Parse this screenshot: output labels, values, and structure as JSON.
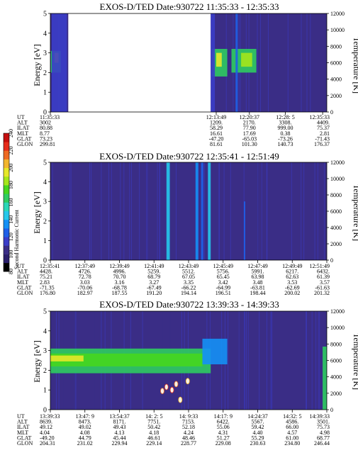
{
  "colors": {
    "background": "#3a2d86",
    "spectrum": [
      "#000000",
      "#2a1f6b",
      "#3a2d86",
      "#3b3dc8",
      "#1f5fe8",
      "#1590f5",
      "#26c8ea",
      "#2bd7b7",
      "#2fcc60",
      "#46d61e",
      "#a5e61b",
      "#e6e82a",
      "#f2b52d",
      "#ee6a24",
      "#e62d1c",
      "#c40f0f"
    ]
  },
  "colorbar": {
    "label": "Second Harmonic Current",
    "ticks": [
      "80",
      "100",
      "120",
      "140",
      "160",
      "180",
      "200",
      "220",
      "240"
    ]
  },
  "chart_data": [
    {
      "type": "heatmap",
      "title": "EXOS-D/TED   Date:930722   11:35:33 - 12:35:33",
      "ylabel": "Energy [eV]",
      "y2label": "Temperature [K]",
      "ylim": [
        0,
        5
      ],
      "yticks": [
        "0",
        "1",
        "2",
        "3",
        "4",
        "5"
      ],
      "y2lim": [
        0,
        12000
      ],
      "y2ticks": [
        "0",
        "2000",
        "4000",
        "6000",
        "8000",
        "10000",
        "12000"
      ],
      "data_gaps": [
        {
          "from": "11:39:00",
          "to": "12:13:00"
        }
      ],
      "features": [
        {
          "t0": 0.002,
          "t1": 0.038,
          "e0": 2.0,
          "e1": 3.1,
          "level": 0.55
        },
        {
          "t0": 0.015,
          "t1": 0.03,
          "e0": 2.5,
          "e1": 3.0,
          "level": 0.72
        },
        {
          "t0": 0.005,
          "t1": 0.06,
          "e0": 0.0,
          "e1": 5.0,
          "level": 0.2
        },
        {
          "t0": 0.585,
          "t1": 0.64,
          "e0": 1.8,
          "e1": 3.2,
          "level": 0.55
        },
        {
          "t0": 0.6,
          "t1": 0.62,
          "e0": 2.3,
          "e1": 3.0,
          "level": 0.72
        },
        {
          "t0": 0.58,
          "t1": 0.595,
          "e0": 0.0,
          "e1": 5.0,
          "level": 0.22
        },
        {
          "t0": 0.655,
          "t1": 0.745,
          "e0": 2.0,
          "e1": 3.2,
          "level": 0.5
        },
        {
          "t0": 0.69,
          "t1": 0.73,
          "e0": 2.3,
          "e1": 3.0,
          "level": 0.68
        },
        {
          "t0": 0.67,
          "t1": 0.678,
          "e0": 0.0,
          "e1": 5.0,
          "level": 0.25
        }
      ],
      "ephemeris": {
        "labels": [
          "UT",
          "ALT",
          "ILAT",
          "MLT",
          "GLAT",
          "GLON"
        ],
        "columns": [
          {
            "values": [
              "11:35:33",
              "3002",
              "80.88",
              "8.77",
              "73.23",
              "299.81"
            ]
          },
          {
            "values": [
              "12:13:49",
              "1209.",
              "58.29",
              "16.61",
              "-47.20",
              "81.61"
            ]
          },
          {
            "values": [
              "12:20:37",
              "2170.",
              "77.90",
              "17.69",
              "-65.03",
              "101.30"
            ]
          },
          {
            "values": [
              "12:28: 5",
              "3308.",
              "999.00",
              "0.38",
              "-73.26",
              "140.73"
            ]
          },
          {
            "values": [
              "12:35:33",
              "4409.",
              "75.37",
              "2.81",
              "-71.43",
              "176.37"
            ]
          }
        ]
      }
    },
    {
      "type": "heatmap",
      "title": "EXOS-D/TED   Date:930722   12:35:41 - 12:51:49",
      "ylabel": "Energy [eV]",
      "y2label": "Temperature [K]",
      "ylim": [
        0,
        5
      ],
      "yticks": [
        "0",
        "1",
        "2",
        "3",
        "4",
        "5"
      ],
      "y2lim": [
        0,
        12000
      ],
      "y2ticks": [
        "0",
        "2000",
        "4000",
        "6000",
        "8000",
        "10000",
        "12000"
      ],
      "features": [
        {
          "t0": 0.42,
          "t1": 0.432,
          "e0": 0.0,
          "e1": 5.0,
          "level": 0.4
        },
        {
          "t0": 0.525,
          "t1": 0.535,
          "e0": 0.0,
          "e1": 5.0,
          "level": 0.32
        },
        {
          "t0": 0.545,
          "t1": 0.553,
          "e0": 0.0,
          "e1": 5.0,
          "level": 0.28
        },
        {
          "t0": 0.57,
          "t1": 0.58,
          "e0": 0.0,
          "e1": 5.0,
          "level": 0.42
        },
        {
          "t0": 0.7,
          "t1": 0.705,
          "e0": 0.0,
          "e1": 3.0,
          "level": 0.25
        }
      ],
      "ephemeris": {
        "labels": [
          "UT",
          "ALT",
          "ILAT",
          "MLT",
          "GLAT",
          "GLON"
        ],
        "columns": [
          {
            "values": [
              "12:35:41",
              "4428.",
              "75.21",
              "2.83",
              "-71.35",
              "176.80"
            ]
          },
          {
            "values": [
              "12:37:49",
              "4726.",
              "72.78",
              "3.03",
              "-70.06",
              "182.97"
            ]
          },
          {
            "values": [
              "12:39:49",
              "4996.",
              "70.70",
              "3.16",
              "-68.78",
              "187.55"
            ]
          },
          {
            "values": [
              "12:41:49",
              "5259.",
              "68.79",
              "3.27",
              "-67.49",
              "191.20"
            ]
          },
          {
            "values": [
              "12:43:49",
              "5512.",
              "67.05",
              "3.35",
              "-66.22",
              "194.14"
            ]
          },
          {
            "values": [
              "12:45:49",
              "5756.",
              "65.45",
              "3.42",
              "-64.99",
              "196.51"
            ]
          },
          {
            "values": [
              "12:47:49",
              "5991.",
              "63.98",
              "3.48",
              "-63.81",
              "198.44"
            ]
          },
          {
            "values": [
              "12:49:49",
              "6217.",
              "62.63",
              "3.53",
              "-62.69",
              "200.02"
            ]
          },
          {
            "values": [
              "12:51:49",
              "6432.",
              "61.39",
              "3.57",
              "-61.63",
              "201.32"
            ]
          }
        ]
      }
    },
    {
      "type": "heatmap",
      "title": "EXOS-D/TED   Date:930722   13:39:33 - 14:39:33",
      "ylabel": "Energy [eV]",
      "y2label": "Temperature [K]",
      "ylim": [
        0,
        5
      ],
      "yticks": [
        "0",
        "1",
        "2",
        "3",
        "4",
        "5"
      ],
      "y2lim": [
        0,
        12000
      ],
      "y2ticks": [
        "0",
        "2000",
        "4000",
        "6000",
        "8000",
        "10000",
        "12000"
      ],
      "features": [
        {
          "t0": 0.0,
          "t1": 0.58,
          "e0": 1.85,
          "e1": 3.1,
          "level": 0.5
        },
        {
          "t0": 0.0,
          "t1": 0.55,
          "e0": 2.2,
          "e1": 2.85,
          "level": 0.62
        },
        {
          "t0": 0.0,
          "t1": 0.12,
          "e0": 2.45,
          "e1": 2.75,
          "level": 0.7
        },
        {
          "t0": 0.55,
          "t1": 0.64,
          "e0": 2.3,
          "e1": 3.6,
          "level": 0.35
        },
        {
          "t0": 0.985,
          "t1": 1.0,
          "e0": 0.0,
          "e1": 3.2,
          "level": 0.5
        }
      ],
      "hotspots": [
        {
          "t": 0.42,
          "e": 1.15,
          "level": 0.93
        },
        {
          "t": 0.44,
          "e": 1.0,
          "level": 0.9
        },
        {
          "t": 0.405,
          "e": 0.95,
          "level": 0.88
        },
        {
          "t": 0.455,
          "e": 1.3,
          "level": 0.85
        },
        {
          "t": 0.47,
          "e": 0.5,
          "level": 0.82
        },
        {
          "t": 0.497,
          "e": 1.45,
          "level": 0.8
        }
      ],
      "ephemeris": {
        "labels": [
          "UT",
          "ALT",
          "ILAT",
          "MLT",
          "GLAT",
          "GLON"
        ],
        "columns": [
          {
            "values": [
              "13:39:33",
              "8639.",
              "49.12",
              "4.04",
              "-49.20",
              "204.31"
            ]
          },
          {
            "values": [
              "13:47: 9",
              "8473.",
              "49.02",
              "4.08",
              "44.79",
              "231.02"
            ]
          },
          {
            "values": [
              "13:54:37",
              "8171.",
              "49.43",
              "4.13",
              "45.44",
              "229.94"
            ]
          },
          {
            "values": [
              "14: 2: 5",
              "7751.",
              "50.42",
              "4.18",
              "46.61",
              "229.14"
            ]
          },
          {
            "values": [
              "14: 9:33",
              "7153.",
              "52.18",
              "4.24",
              "48.46",
              "228.77"
            ]
          },
          {
            "values": [
              "14:17: 9",
              "6422.",
              "55.06",
              "4.31",
              "51.27",
              "229.08"
            ]
          },
          {
            "values": [
              "14:24:37",
              "5567.",
              "59.42",
              "4.40",
              "55.29",
              "230.63"
            ]
          },
          {
            "values": [
              "14:32: 5",
              "4586.",
              "66.00",
              "4.57",
              "61.00",
              "234.80"
            ]
          },
          {
            "values": [
              "14:39:33",
              "3501.",
              "75.73",
              "4.98",
              "68.77",
              "246.44"
            ]
          }
        ]
      }
    }
  ]
}
